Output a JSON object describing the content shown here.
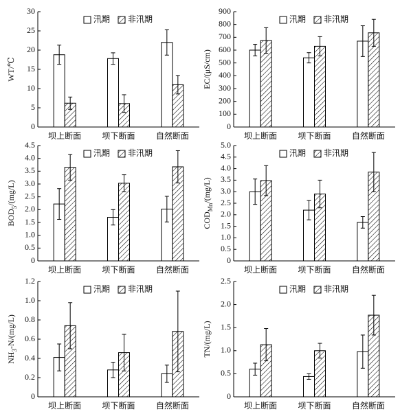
{
  "chart_data": [
    {
      "type": "bar",
      "ylabel": "WT/℃",
      "categories": [
        "坝上断面",
        "坝下断面",
        "自然断面"
      ],
      "series": [
        {
          "name": "汛期",
          "color": "#000000",
          "fill": "#ffffff",
          "hatch": false,
          "values": [
            18.8,
            17.8,
            22.0
          ],
          "errors": [
            2.5,
            1.5,
            3.3
          ]
        },
        {
          "name": "非汛期",
          "color": "#000000",
          "fill": "#ffffff",
          "hatch": true,
          "values": [
            6.2,
            6.1,
            11.0
          ],
          "errors": [
            1.6,
            2.3,
            2.4
          ]
        }
      ],
      "ylim": [
        0,
        30
      ],
      "yticks": [
        0,
        5,
        10,
        15,
        20,
        25,
        30
      ],
      "legend": "top"
    },
    {
      "type": "bar",
      "ylabel": "EC/(μS/cm)",
      "categories": [
        "坝上断面",
        "坝下断面",
        "自然断面"
      ],
      "series": [
        {
          "name": "汛期",
          "color": "#000000",
          "fill": "#ffffff",
          "hatch": false,
          "values": [
            600,
            540,
            670
          ],
          "errors": [
            45,
            40,
            120
          ]
        },
        {
          "name": "非汛期",
          "color": "#000000",
          "fill": "#ffffff",
          "hatch": true,
          "values": [
            675,
            630,
            735
          ],
          "errors": [
            100,
            75,
            105
          ]
        }
      ],
      "ylim": [
        0,
        900
      ],
      "yticks": [
        0,
        100,
        200,
        300,
        400,
        500,
        600,
        700,
        800,
        900
      ],
      "legend": "top"
    },
    {
      "type": "bar",
      "ylabel": [
        {
          "text": "BOD"
        },
        {
          "text": "5",
          "sub": true
        },
        {
          "text": "/(mg/L)"
        }
      ],
      "categories": [
        "坝上断面",
        "坝下断面",
        "自然断面"
      ],
      "series": [
        {
          "name": "汛期",
          "color": "#000000",
          "fill": "#ffffff",
          "hatch": false,
          "values": [
            2.22,
            1.7,
            2.02
          ],
          "errors": [
            0.6,
            0.3,
            0.5
          ]
        },
        {
          "name": "非汛期",
          "color": "#000000",
          "fill": "#ffffff",
          "hatch": true,
          "values": [
            3.65,
            3.03,
            3.67
          ],
          "errors": [
            0.5,
            0.33,
            0.63
          ]
        }
      ],
      "ylim": [
        0,
        4.5
      ],
      "yticks": [
        0,
        0.5,
        {
          "value": 1,
          "label": "1.0"
        },
        1.5,
        {
          "value": 2,
          "label": "2.0"
        },
        2.5,
        {
          "value": 3,
          "label": "3.0"
        },
        3.5,
        {
          "value": 4,
          "label": "4.0"
        },
        4.5
      ],
      "legend": "top"
    },
    {
      "type": "bar",
      "ylabel": [
        {
          "text": "COD"
        },
        {
          "text": "Mn",
          "sub": true
        },
        {
          "text": "/(mg/L)"
        }
      ],
      "categories": [
        "坝上断面",
        "坝下断面",
        "自然断面"
      ],
      "series": [
        {
          "name": "汛期",
          "color": "#000000",
          "fill": "#ffffff",
          "hatch": false,
          "values": [
            3.0,
            2.2,
            1.67
          ],
          "errors": [
            0.55,
            0.42,
            0.25
          ]
        },
        {
          "name": "非汛期",
          "color": "#000000",
          "fill": "#ffffff",
          "hatch": true,
          "values": [
            3.48,
            2.9,
            3.85
          ],
          "errors": [
            0.65,
            0.6,
            0.85
          ]
        }
      ],
      "ylim": [
        0,
        5
      ],
      "yticks": [
        0,
        0.5,
        {
          "value": 1,
          "label": "1.0"
        },
        1.5,
        {
          "value": 2,
          "label": "2.0"
        },
        2.5,
        {
          "value": 3,
          "label": "3.0"
        },
        3.5,
        {
          "value": 4,
          "label": "4.0"
        },
        4.5,
        {
          "value": 5,
          "label": "5.0"
        }
      ],
      "legend": "top"
    },
    {
      "type": "bar",
      "ylabel": [
        {
          "text": "NH"
        },
        {
          "text": "3",
          "sub": true
        },
        {
          "text": "-N/(mg/L)"
        }
      ],
      "categories": [
        "坝上断面",
        "坝下断面",
        "自然断面"
      ],
      "series": [
        {
          "name": "汛期",
          "color": "#000000",
          "fill": "#ffffff",
          "hatch": false,
          "values": [
            0.41,
            0.28,
            0.24
          ],
          "errors": [
            0.14,
            0.08,
            0.09
          ]
        },
        {
          "name": "非汛期",
          "color": "#000000",
          "fill": "#ffffff",
          "hatch": true,
          "values": [
            0.74,
            0.46,
            0.68
          ],
          "errors": [
            0.24,
            0.19,
            0.42
          ]
        }
      ],
      "ylim": [
        0,
        1.2
      ],
      "yticks": [
        0,
        0.2,
        0.4,
        0.6,
        0.8,
        {
          "value": 1,
          "label": "1.0"
        },
        1.2
      ],
      "legend": "top"
    },
    {
      "type": "bar",
      "ylabel": "TN/(mg/L)",
      "categories": [
        "坝上断面",
        "坝下断面",
        "自然断面"
      ],
      "series": [
        {
          "name": "汛期",
          "color": "#000000",
          "fill": "#ffffff",
          "hatch": false,
          "values": [
            0.6,
            0.44,
            0.98
          ],
          "errors": [
            0.13,
            0.06,
            0.36
          ]
        },
        {
          "name": "非汛期",
          "color": "#000000",
          "fill": "#ffffff",
          "hatch": true,
          "values": [
            1.13,
            1.0,
            1.77
          ],
          "errors": [
            0.35,
            0.16,
            0.43
          ]
        }
      ],
      "ylim": [
        0,
        2.5
      ],
      "yticks": [
        0,
        0.5,
        {
          "value": 1,
          "label": "1.0"
        },
        1.5,
        {
          "value": 2,
          "label": "2.0"
        },
        2.5
      ],
      "legend": "top"
    }
  ]
}
